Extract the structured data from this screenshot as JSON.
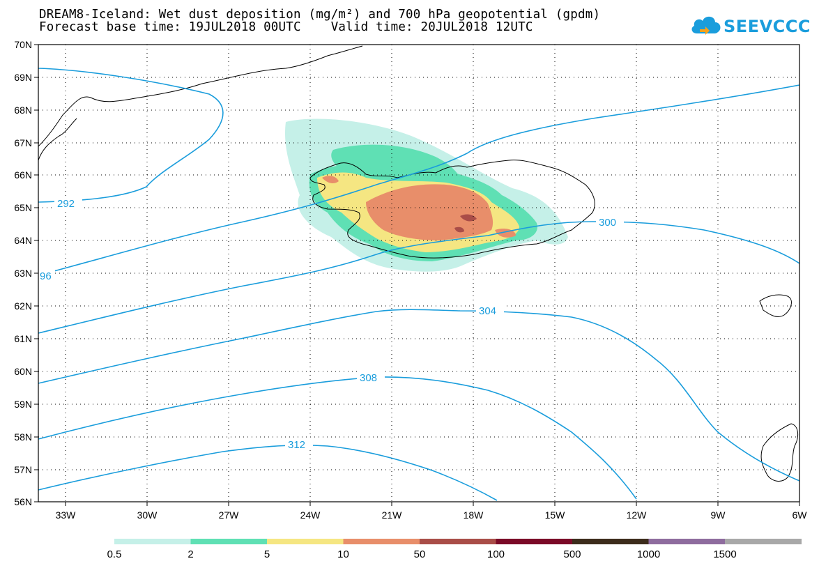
{
  "title": {
    "line1": "DREAM8-Iceland: Wet dust deposition (mg/m²) and 700 hPa geopotential (gpdm)",
    "line2": "Forecast base time: 19JUL2018 00UTC    Valid time: 20JUL2018 12UTC"
  },
  "logo": {
    "text": "SEEVCCC",
    "icon": "cloud-icon",
    "color": "#1a9ddc"
  },
  "map": {
    "lat_labels": [
      "70N",
      "69N",
      "68N",
      "67N",
      "66N",
      "65N",
      "64N",
      "63N",
      "62N",
      "61N",
      "60N",
      "59N",
      "58N",
      "57N",
      "56N"
    ],
    "lon_labels": [
      "33W",
      "30W",
      "27W",
      "24W",
      "21W",
      "18W",
      "15W",
      "12W",
      "9W",
      "6W"
    ],
    "gridlines": "dotted",
    "contour_color": "#1a9ddc",
    "contour_labels": [
      "292",
      "96",
      "300",
      "304",
      "308",
      "312"
    ]
  },
  "legend": {
    "colors": [
      "#c5f0e8",
      "#5fe0b4",
      "#f5e682",
      "#e88e6a",
      "#a94d48",
      "#7a0a27",
      "#3c2c1c",
      "#8e6c9e",
      "#a8a8a8"
    ],
    "labels": [
      "0.5",
      "2",
      "5",
      "10",
      "50",
      "100",
      "500",
      "1000",
      "1500"
    ]
  }
}
